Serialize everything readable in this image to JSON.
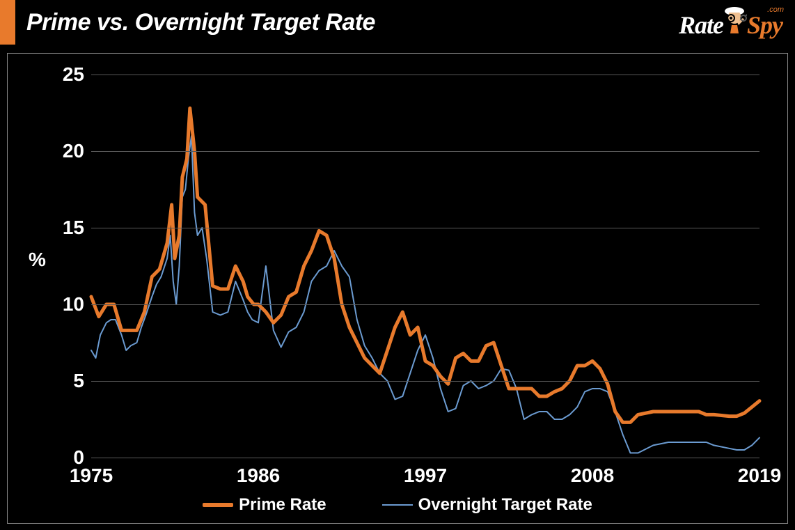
{
  "header": {
    "title": "Prime vs. Overnight Target Rate",
    "accent_color": "#e87a2c",
    "logo": {
      "text_rate": "Rate",
      "text_spy": "Spy",
      "text_com": ".com",
      "rate_color": "#ffffff",
      "spy_color": "#e87a2c"
    }
  },
  "chart": {
    "type": "line",
    "background_color": "#000000",
    "frame_border_color": "#8a8a8a",
    "grid_color": "#5a5a5a",
    "ylabel": "%",
    "ylabel_fontsize": 28,
    "axis_fontsize": 28,
    "axis_fontweight": "bold",
    "axis_color": "#ffffff",
    "xlim": [
      1975,
      2019
    ],
    "ylim": [
      0,
      25
    ],
    "yticks": [
      0,
      5,
      10,
      15,
      20,
      25
    ],
    "xticks": [
      1975,
      1986,
      1997,
      2008,
      2019
    ],
    "series": [
      {
        "name": "Prime Rate",
        "color": "#e87a2c",
        "line_width": 5,
        "x": [
          1975.0,
          1975.5,
          1976.0,
          1976.5,
          1977.0,
          1977.5,
          1978.0,
          1978.5,
          1979.0,
          1979.5,
          1980.0,
          1980.3,
          1980.5,
          1980.8,
          1981.0,
          1981.3,
          1981.5,
          1981.8,
          1982.0,
          1982.5,
          1983.0,
          1983.5,
          1984.0,
          1984.5,
          1985.0,
          1985.3,
          1985.7,
          1986.0,
          1986.5,
          1987.0,
          1987.5,
          1988.0,
          1988.5,
          1989.0,
          1989.5,
          1990.0,
          1990.5,
          1991.0,
          1991.5,
          1992.0,
          1992.5,
          1993.0,
          1993.5,
          1994.0,
          1994.5,
          1995.0,
          1995.5,
          1996.0,
          1996.5,
          1997.0,
          1997.5,
          1998.0,
          1998.5,
          1999.0,
          1999.5,
          2000.0,
          2000.5,
          2001.0,
          2001.5,
          2002.0,
          2002.5,
          2003.0,
          2003.5,
          2004.0,
          2004.5,
          2005.0,
          2005.5,
          2006.0,
          2006.5,
          2007.0,
          2007.5,
          2008.0,
          2008.5,
          2009.0,
          2009.5,
          2010.0,
          2010.5,
          2011.0,
          2012.0,
          2013.0,
          2014.0,
          2015.0,
          2015.5,
          2016.0,
          2017.0,
          2017.5,
          2018.0,
          2018.5,
          2019.0
        ],
        "y": [
          10.5,
          9.2,
          10.0,
          10.0,
          8.3,
          8.3,
          8.3,
          9.5,
          11.8,
          12.3,
          14.0,
          16.5,
          13.0,
          14.5,
          18.3,
          19.5,
          22.8,
          20.0,
          17.0,
          16.5,
          11.2,
          11.0,
          11.0,
          12.5,
          11.5,
          10.5,
          10.0,
          10.0,
          9.5,
          8.8,
          9.3,
          10.5,
          10.8,
          12.5,
          13.5,
          14.8,
          14.5,
          13.0,
          10.0,
          8.5,
          7.5,
          6.5,
          6.0,
          5.5,
          7.0,
          8.5,
          9.5,
          8.0,
          8.5,
          6.3,
          6.0,
          5.3,
          4.8,
          6.5,
          6.8,
          6.3,
          6.3,
          7.3,
          7.5,
          6.0,
          4.5,
          4.5,
          4.5,
          4.5,
          4.0,
          4.0,
          4.3,
          4.5,
          5.0,
          6.0,
          6.0,
          6.3,
          5.8,
          4.8,
          3.0,
          2.3,
          2.3,
          2.8,
          3.0,
          3.0,
          3.0,
          3.0,
          2.8,
          2.8,
          2.7,
          2.7,
          2.9,
          3.3,
          3.7
        ]
      },
      {
        "name": "Overnight Target Rate",
        "color": "#6b9bd1",
        "line_width": 2,
        "x": [
          1975.0,
          1975.3,
          1975.6,
          1976.0,
          1976.3,
          1976.6,
          1977.0,
          1977.3,
          1977.6,
          1978.0,
          1978.3,
          1978.6,
          1979.0,
          1979.3,
          1979.6,
          1980.0,
          1980.2,
          1980.4,
          1980.6,
          1980.8,
          1981.0,
          1981.2,
          1981.4,
          1981.6,
          1981.8,
          1982.0,
          1982.3,
          1982.6,
          1983.0,
          1983.5,
          1984.0,
          1984.5,
          1985.0,
          1985.3,
          1985.6,
          1986.0,
          1986.5,
          1987.0,
          1987.5,
          1988.0,
          1988.5,
          1989.0,
          1989.5,
          1990.0,
          1990.5,
          1991.0,
          1991.5,
          1992.0,
          1992.5,
          1993.0,
          1993.5,
          1994.0,
          1994.5,
          1995.0,
          1995.5,
          1996.0,
          1996.5,
          1997.0,
          1997.5,
          1998.0,
          1998.5,
          1999.0,
          1999.5,
          2000.0,
          2000.5,
          2001.0,
          2001.5,
          2002.0,
          2002.5,
          2003.0,
          2003.5,
          2004.0,
          2004.5,
          2005.0,
          2005.5,
          2006.0,
          2006.5,
          2007.0,
          2007.5,
          2008.0,
          2008.5,
          2009.0,
          2009.5,
          2010.0,
          2010.5,
          2011.0,
          2012.0,
          2013.0,
          2014.0,
          2015.0,
          2015.5,
          2016.0,
          2017.0,
          2017.5,
          2018.0,
          2018.5,
          2019.0
        ],
        "y": [
          7.0,
          6.5,
          8.0,
          8.8,
          9.0,
          9.0,
          8.0,
          7.0,
          7.3,
          7.5,
          8.5,
          9.3,
          10.5,
          11.3,
          11.8,
          13.0,
          14.5,
          11.5,
          10.0,
          12.5,
          17.0,
          17.5,
          19.5,
          21.0,
          16.0,
          14.5,
          15.0,
          13.0,
          9.5,
          9.3,
          9.5,
          11.5,
          10.3,
          9.5,
          9.0,
          8.8,
          12.5,
          8.3,
          7.2,
          8.2,
          8.5,
          9.5,
          11.5,
          12.2,
          12.5,
          13.5,
          12.5,
          11.8,
          9.0,
          7.3,
          6.5,
          5.5,
          5.0,
          3.8,
          4.0,
          5.5,
          7.0,
          8.0,
          6.5,
          4.5,
          3.0,
          3.2,
          4.7,
          5.0,
          4.5,
          4.7,
          5.0,
          5.8,
          5.7,
          4.5,
          2.5,
          2.8,
          3.0,
          3.0,
          2.5,
          2.5,
          2.8,
          3.3,
          4.3,
          4.5,
          4.5,
          4.3,
          3.0,
          1.5,
          0.3,
          0.3,
          0.8,
          1.0,
          1.0,
          1.0,
          1.0,
          0.8,
          0.6,
          0.5,
          0.5,
          0.8,
          1.3
        ]
      }
    ],
    "legend": {
      "position": "bottom",
      "items": [
        {
          "label": "Prime Rate",
          "color": "#e87a2c",
          "thick": true
        },
        {
          "label": "Overnight Target Rate",
          "color": "#6b9bd1",
          "thick": false
        }
      ],
      "fontsize": 24,
      "fontweight": "bold",
      "text_color": "#ffffff"
    }
  }
}
